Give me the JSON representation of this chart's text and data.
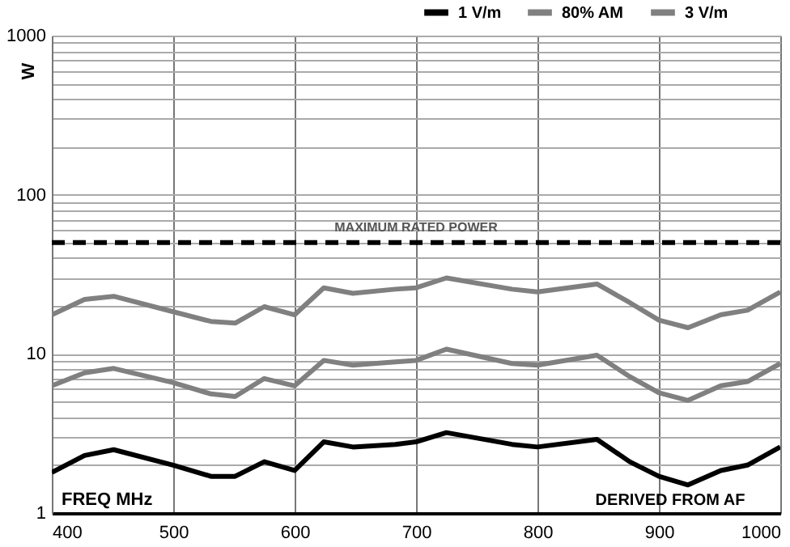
{
  "chart_data": {
    "type": "line",
    "xlabel": "FREQ  MHz",
    "ylabel": "W",
    "x": [
      400,
      427,
      451,
      500,
      531,
      551,
      575,
      600,
      624,
      648,
      683,
      700,
      725,
      779,
      800,
      849,
      876,
      900,
      924,
      951,
      973,
      1000
    ],
    "series": [
      {
        "name": "1 V/m",
        "color": "#000000",
        "values": [
          1.8,
          2.3,
          2.5,
          2.0,
          1.7,
          1.7,
          2.1,
          1.85,
          2.8,
          2.6,
          2.7,
          2.8,
          3.2,
          2.7,
          2.6,
          2.9,
          2.1,
          1.7,
          1.5,
          1.85,
          2.0,
          2.6
        ]
      },
      {
        "name": "80% AM",
        "color": "#808080",
        "values": [
          6.3,
          7.6,
          8.1,
          6.6,
          5.6,
          5.4,
          7.0,
          6.3,
          9.1,
          8.5,
          8.9,
          9.1,
          10.7,
          8.7,
          8.5,
          9.8,
          7.2,
          5.7,
          5.1,
          6.3,
          6.7,
          8.7
        ]
      },
      {
        "name": "3 V/m",
        "color": "#808080",
        "values": [
          17.6,
          22,
          23,
          18.4,
          16,
          15.6,
          19.8,
          17.6,
          26,
          24,
          25.5,
          26,
          30,
          25.5,
          24.5,
          27.5,
          21,
          16.3,
          14.6,
          17.6,
          18.8,
          24.5
        ]
      }
    ],
    "log": "y",
    "xlim": [
      400,
      1000
    ],
    "ylim": [
      1,
      1000
    ],
    "xticks": [
      400,
      500,
      600,
      700,
      800,
      900,
      1000
    ],
    "yticks": [
      1,
      {
        "value": 2,
        "label": null
      },
      {
        "value": 3,
        "label": null
      },
      {
        "value": 4,
        "label": null
      },
      {
        "value": 5,
        "label": null
      },
      {
        "value": 6,
        "label": null
      },
      {
        "value": 7,
        "label": null
      },
      {
        "value": 8,
        "label": null
      },
      {
        "value": 9,
        "label": null
      },
      10,
      {
        "value": 20,
        "label": null
      },
      {
        "value": 30,
        "label": null
      },
      {
        "value": 40,
        "label": null
      },
      {
        "value": 50,
        "label": null
      },
      {
        "value": 60,
        "label": null
      },
      {
        "value": 70,
        "label": null
      },
      {
        "value": 80,
        "label": null
      },
      {
        "value": 90,
        "label": null
      },
      100,
      {
        "value": 200,
        "label": null
      },
      {
        "value": 300,
        "label": null
      },
      {
        "value": 400,
        "label": null
      },
      {
        "value": 500,
        "label": null
      },
      {
        "value": 600,
        "label": null
      },
      {
        "value": 700,
        "label": null
      },
      {
        "value": 800,
        "label": null
      },
      {
        "value": 900,
        "label": null
      },
      1000
    ],
    "grid": true,
    "legend": "top right",
    "line_style": "solid",
    "ref_lines": [
      {
        "axis": "y",
        "value": 50,
        "label": "MAXIMUM RATED POWER",
        "color": "#000000",
        "line_style": "dashed"
      }
    ],
    "annotations": [
      "DERIVED FROM AF"
    ]
  }
}
